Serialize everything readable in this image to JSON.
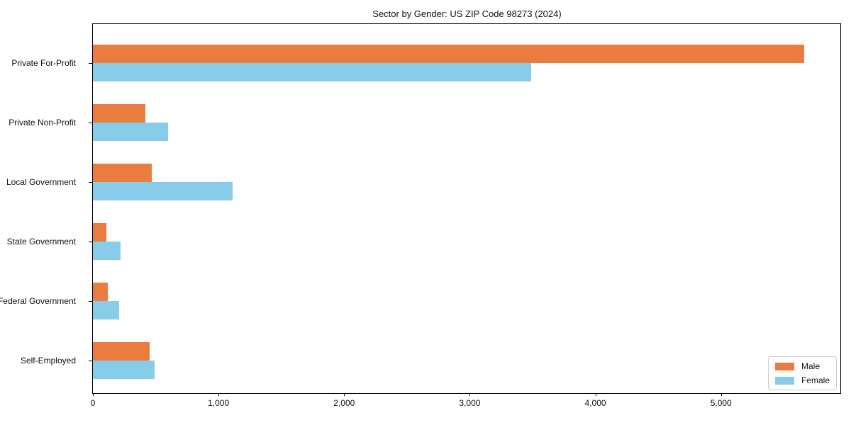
{
  "title": "Sector by Gender: US ZIP Code 98273 (2024)",
  "chart_data": {
    "type": "bar",
    "orientation": "horizontal",
    "title": "Sector by Gender: US ZIP Code 98273 (2024)",
    "categories": [
      "Private For-Profit",
      "Private Non-Profit",
      "Local Government",
      "State Government",
      "Federal Government",
      "Self-Employed"
    ],
    "series": [
      {
        "name": "Male",
        "color": "#e97c3e",
        "values": [
          5660,
          420,
          470,
          110,
          120,
          450
        ]
      },
      {
        "name": "Female",
        "color": "#87cde9",
        "values": [
          3490,
          600,
          1110,
          220,
          210,
          490
        ]
      }
    ],
    "xlabel": "",
    "ylabel": "",
    "xlim": [
      0,
      5950
    ],
    "xticks": [
      0,
      1000,
      2000,
      3000,
      4000,
      5000
    ],
    "xtick_labels": [
      "0",
      "1,000",
      "2,000",
      "3,000",
      "4,000",
      "5,000"
    ],
    "grid": false,
    "legend": {
      "position": "lower-right",
      "entries": [
        "Male",
        "Female"
      ]
    },
    "background": "#ffffff",
    "bar_colors": {
      "male": "#e97c3e",
      "female": "#87cde9"
    }
  }
}
